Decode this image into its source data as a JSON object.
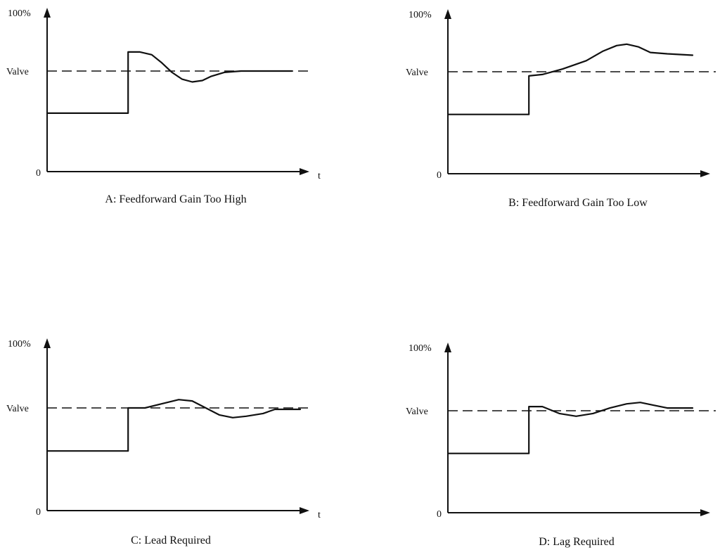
{
  "chart_data": [
    {
      "type": "line",
      "title": "A: Feedforward Gain Too High",
      "y_top_label": "100%",
      "reference_label": "Valve",
      "y_zero_label": "0",
      "x_axis_label": "t",
      "grid": false,
      "series": [
        {
          "points": [
            [
              0.0,
              0.43
            ],
            [
              0.48,
              0.43
            ],
            [
              0.48,
              0.88
            ],
            [
              0.55,
              0.88
            ],
            [
              0.62,
              0.86
            ],
            [
              0.68,
              0.8
            ],
            [
              0.74,
              0.73
            ],
            [
              0.8,
              0.68
            ],
            [
              0.86,
              0.66
            ],
            [
              0.92,
              0.67
            ],
            [
              0.97,
              0.7
            ],
            [
              1.05,
              0.73
            ],
            [
              1.15,
              0.74
            ],
            [
              1.45,
              0.74
            ]
          ]
        }
      ]
    },
    {
      "type": "line",
      "title": "B: Feedforward Gain Too Low",
      "y_top_label": "100%",
      "reference_label": "Valve",
      "y_zero_label": "0",
      "x_axis_label": "",
      "grid": false,
      "series": [
        {
          "points": [
            [
              0.0,
              0.43
            ],
            [
              0.48,
              0.43
            ],
            [
              0.48,
              0.71
            ],
            [
              0.56,
              0.72
            ],
            [
              0.68,
              0.76
            ],
            [
              0.82,
              0.82
            ],
            [
              0.92,
              0.89
            ],
            [
              1.0,
              0.93
            ],
            [
              1.06,
              0.94
            ],
            [
              1.13,
              0.92
            ],
            [
              1.2,
              0.88
            ],
            [
              1.3,
              0.87
            ],
            [
              1.45,
              0.86
            ]
          ]
        }
      ]
    },
    {
      "type": "line",
      "title": "C: Lead Required",
      "y_top_label": "100%",
      "reference_label": "Valve",
      "y_zero_label": "0",
      "x_axis_label": "t",
      "grid": false,
      "series": [
        {
          "points": [
            [
              0.0,
              0.43
            ],
            [
              0.48,
              0.43
            ],
            [
              0.48,
              0.74
            ],
            [
              0.58,
              0.74
            ],
            [
              0.68,
              0.77
            ],
            [
              0.78,
              0.8
            ],
            [
              0.86,
              0.79
            ],
            [
              0.94,
              0.74
            ],
            [
              1.02,
              0.69
            ],
            [
              1.1,
              0.67
            ],
            [
              1.18,
              0.68
            ],
            [
              1.28,
              0.7
            ],
            [
              1.35,
              0.73
            ],
            [
              1.4,
              0.73
            ],
            [
              1.5,
              0.73
            ]
          ]
        }
      ]
    },
    {
      "type": "line",
      "title": "D: Lag Required",
      "y_top_label": "100%",
      "reference_label": "Valve",
      "y_zero_label": "0",
      "x_axis_label": "",
      "grid": false,
      "series": [
        {
          "points": [
            [
              0.0,
              0.43
            ],
            [
              0.48,
              0.43
            ],
            [
              0.48,
              0.77
            ],
            [
              0.56,
              0.77
            ],
            [
              0.66,
              0.72
            ],
            [
              0.76,
              0.7
            ],
            [
              0.86,
              0.72
            ],
            [
              0.96,
              0.76
            ],
            [
              1.06,
              0.79
            ],
            [
              1.14,
              0.8
            ],
            [
              1.22,
              0.78
            ],
            [
              1.3,
              0.76
            ],
            [
              1.45,
              0.76
            ]
          ]
        }
      ]
    }
  ]
}
